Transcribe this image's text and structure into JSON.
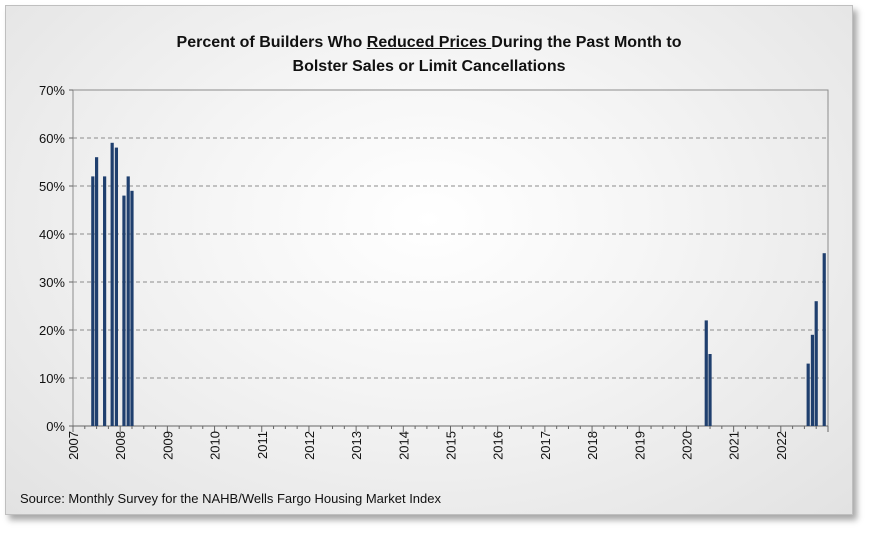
{
  "chart_data": {
    "type": "bar",
    "title_parts": [
      "Percent of Builders Who ",
      "Reduced Prices ",
      "During the Past Month to",
      "Bolster Sales or Limit Cancellations"
    ],
    "source": "Source: Monthly Survey for the NAHB/Wells Fargo Housing Market Index",
    "ylim": [
      0,
      70
    ],
    "yticks": [
      0,
      10,
      20,
      30,
      40,
      50,
      60,
      70
    ],
    "ytick_labels": [
      "0%",
      "10%",
      "20%",
      "30%",
      "40%",
      "50%",
      "60%",
      "70%"
    ],
    "xlim": [
      2007.0,
      2023.0
    ],
    "xticks": [
      2007,
      2008,
      2009,
      2010,
      2011,
      2012,
      2013,
      2014,
      2015,
      2016,
      2017,
      2018,
      2019,
      2020,
      2021,
      2022
    ],
    "xtick_labels": [
      "2007",
      "2008",
      "2009",
      "2010",
      "2011",
      "2012",
      "2013",
      "2014",
      "2015",
      "2016",
      "2017",
      "2018",
      "2019",
      "2020",
      "2021",
      "2022"
    ],
    "grid": "horizontal-dashed",
    "bar_color": "#1f3f6e",
    "x": [
      2007.42,
      2007.5,
      2007.67,
      2007.83,
      2007.92,
      2008.08,
      2008.17,
      2008.25,
      2020.42,
      2020.5,
      2022.58,
      2022.67,
      2022.75,
      2022.92
    ],
    "values": [
      52,
      56,
      52,
      59,
      58,
      48,
      52,
      49,
      22,
      15,
      13,
      19,
      26,
      36
    ]
  }
}
